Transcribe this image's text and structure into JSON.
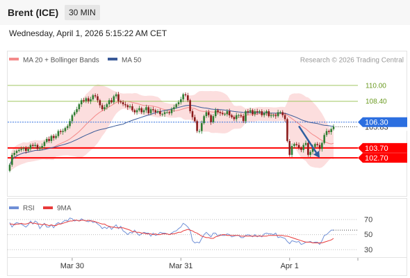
{
  "header": {
    "title": "Brent (ICE)",
    "timeframe": "30 MIN"
  },
  "datetime": "Wednesday, April 1, 2026 5:15:22 AM CET",
  "legend": {
    "bb_label": "MA 20 + Bollinger Bands",
    "ma50_label": "MA 50",
    "copyright": "Research © 2026 Trading Central"
  },
  "colors": {
    "candle_up": "#2e7d32",
    "candle_down": "#8b1a1a",
    "bollinger": "#f48a8a",
    "ma50": "#3a5a98",
    "support": "#ff0000",
    "resistance": "#a0c860",
    "current": "#2c6fe0",
    "rsi": "#6f8fd6",
    "rsi_ma": "#e83a3a",
    "forecast": "#2e5fa0"
  },
  "chart_data": [
    {
      "type": "candlestick",
      "title": "",
      "ylim": [
        99.0,
        111.6
      ],
      "x_ticks": [
        {
          "label": "Mar 30",
          "index": 27
        },
        {
          "label": "Mar 31",
          "index": 74
        },
        {
          "label": "Apr 1",
          "index": 121
        }
      ],
      "x_count": 141,
      "resistance_levels": [
        110.0,
        108.4
      ],
      "support_levels": [
        103.7,
        102.7
      ],
      "current_price": "106.30",
      "current_price_value": 106.3,
      "last_close_label": "105.83",
      "last_close_value": 105.83,
      "forecast": {
        "from": [
          125,
          105.9
        ],
        "to": [
          134,
          102.7
        ]
      },
      "closes": [
        102.0,
        103.0,
        103.2,
        103.4,
        103.5,
        103.6,
        103.7,
        103.4,
        103.6,
        104.0,
        103.9,
        104.0,
        103.6,
        103.7,
        103.9,
        104.3,
        104.6,
        104.4,
        104.9,
        104.7,
        104.9,
        105.4,
        105.3,
        105.4,
        105.7,
        105.9,
        106.4,
        107.0,
        107.3,
        107.6,
        108.1,
        108.5,
        108.4,
        108.7,
        108.4,
        108.6,
        109.0,
        108.9,
        108.5,
        108.0,
        107.6,
        107.8,
        108.1,
        108.5,
        108.3,
        108.9,
        109.1,
        108.4,
        108.3,
        108.1,
        108.0,
        107.8,
        107.9,
        107.5,
        107.3,
        107.5,
        107.7,
        107.3,
        107.5,
        107.8,
        107.2,
        107.6,
        107.5,
        107.3,
        107.4,
        107.1,
        107.1,
        107.3,
        107.3,
        107.2,
        107.6,
        107.8,
        108.1,
        108.3,
        108.6,
        109.1,
        109.0,
        108.5,
        107.4,
        106.8,
        106.4,
        105.4,
        105.4,
        106.2,
        106.9,
        107.3,
        107.0,
        106.3,
        106.9,
        107.5,
        107.3,
        107.2,
        107.1,
        107.1,
        107.4,
        107.0,
        106.8,
        106.6,
        107.0,
        107.0,
        106.9,
        106.4,
        107.4,
        107.3,
        107.5,
        107.1,
        107.4,
        107.3,
        107.4,
        107.0,
        107.2,
        107.4,
        106.9,
        107.0,
        107.0,
        106.9,
        107.3,
        107.3,
        107.0,
        106.6,
        104.4,
        103.0,
        103.9,
        104.1,
        104.0,
        103.7,
        103.5,
        104.0,
        104.2,
        103.0,
        103.3,
        103.8,
        104.1,
        104.0,
        103.6,
        104.2,
        105.0,
        105.4,
        105.3,
        105.6,
        105.83
      ]
    },
    {
      "type": "line",
      "title": "",
      "ylim": [
        22,
        80
      ],
      "y_ticks": [
        70,
        50,
        30
      ],
      "series_names": [
        "RSI",
        "9MA"
      ],
      "x_count": 141,
      "rsi": [
        66,
        60,
        64,
        66,
        65,
        64,
        62,
        60,
        63,
        68,
        64,
        68,
        66,
        58,
        62,
        65,
        60,
        60,
        63,
        59,
        64,
        66,
        64,
        67,
        69,
        68,
        72,
        71,
        68,
        69,
        68,
        71,
        69,
        68,
        67,
        69,
        66,
        67,
        64,
        62,
        58,
        60,
        58,
        61,
        57,
        60,
        63,
        58,
        61,
        55,
        53,
        50,
        53,
        52,
        56,
        52,
        49,
        51,
        53,
        52,
        52,
        48,
        52,
        49,
        50,
        53,
        52,
        52,
        51,
        50,
        52,
        54,
        55,
        58,
        60,
        65,
        63,
        60,
        56,
        42,
        39,
        40,
        39,
        45,
        50,
        53,
        50,
        47,
        52,
        52,
        48,
        50,
        49,
        49,
        51,
        50,
        47,
        48,
        49,
        49,
        46,
        46,
        49,
        50,
        49,
        47,
        50,
        47,
        49,
        47,
        51,
        52,
        51,
        51,
        50,
        52,
        46,
        47,
        46,
        45,
        41,
        38,
        42,
        41,
        40,
        41,
        37,
        38,
        40,
        40,
        41,
        39,
        40,
        40,
        37,
        42,
        49,
        50,
        53,
        56,
        56
      ],
      "rsi_ma": [
        64,
        64,
        63,
        64,
        64,
        65,
        64,
        64,
        65,
        66,
        65,
        65,
        64,
        64,
        63,
        64,
        63,
        62,
        63,
        62,
        62,
        64,
        64,
        65,
        66,
        67,
        68,
        68,
        69,
        69,
        68,
        69,
        69,
        68,
        69,
        68,
        68,
        67,
        66,
        65,
        64,
        64,
        62,
        61,
        60,
        60,
        59,
        59,
        59,
        59,
        58,
        57,
        56,
        54,
        54,
        53,
        53,
        52,
        52,
        51,
        51,
        51,
        50,
        51,
        50,
        50,
        51,
        51,
        51,
        50,
        51,
        51,
        52,
        53,
        53,
        55,
        56,
        57,
        56,
        55,
        53,
        52,
        50,
        48,
        47,
        46,
        46,
        45,
        45,
        47,
        48,
        49,
        50,
        50,
        49,
        49,
        49,
        49,
        49,
        49,
        48,
        48,
        48,
        48,
        48,
        48,
        48,
        48,
        48,
        48,
        48,
        48,
        49,
        49,
        49,
        49,
        49,
        49,
        49,
        48,
        48,
        47,
        46,
        45,
        44,
        43,
        42,
        41,
        40,
        40,
        40,
        39,
        39,
        39,
        39,
        39,
        40,
        41,
        42,
        43,
        45
      ]
    }
  ],
  "rsi_legend": {
    "rsi_label": "RSI",
    "ma_label": "9MA"
  }
}
